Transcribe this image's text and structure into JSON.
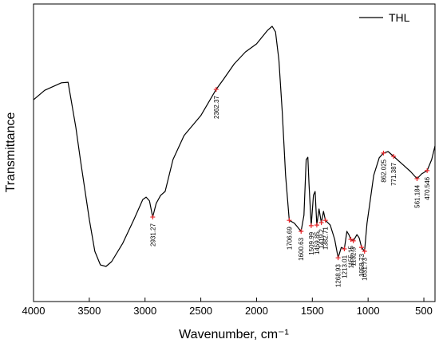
{
  "chart_data": {
    "type": "line",
    "xlabel": "Wavenumber, cm⁻¹",
    "ylabel": "Transmittance",
    "xlim": [
      4000,
      400
    ],
    "ylim": [
      0,
      100
    ],
    "xticks": [
      4000,
      3500,
      3000,
      2500,
      2000,
      1500,
      1000,
      500
    ],
    "legend": "upper right",
    "marker_color": "#e8262a",
    "series": [
      {
        "name": "THL",
        "color": "#000000",
        "x": [
          4000,
          3900,
          3750,
          3690,
          3620,
          3580,
          3500,
          3450,
          3400,
          3350,
          3300,
          3200,
          3100,
          3020,
          2990,
          2960,
          2931.27,
          2900,
          2860,
          2820,
          2750,
          2650,
          2500,
          2362.37,
          2300,
          2200,
          2100,
          2000,
          1900,
          1860,
          1830,
          1800,
          1770,
          1740,
          1706.69,
          1660,
          1600.63,
          1575,
          1555,
          1540,
          1530,
          1509.99,
          1490,
          1475,
          1459.85,
          1440,
          1419.2,
          1400,
          1382.71,
          1340,
          1300,
          1268.93,
          1240,
          1213.01,
          1190,
          1170,
          1155.15,
          1132.3,
          1100,
          1080,
          1058.73,
          1031.73,
          1010,
          980,
          950,
          900,
          862.025,
          820,
          771.387,
          700,
          620,
          561.184,
          520,
          470.546,
          430,
          400
        ],
        "values": [
          67.8,
          71,
          73.5,
          73.7,
          58.4,
          47.7,
          27.6,
          16.9,
          12.3,
          11.8,
          13.4,
          19.6,
          27.6,
          34.3,
          35.1,
          33.8,
          28.4,
          33,
          35.7,
          37,
          47.7,
          55.8,
          62.5,
          71.3,
          74.5,
          79.9,
          83.9,
          86.6,
          91.2,
          92.5,
          90.6,
          81.2,
          63.8,
          42.4,
          27.3,
          26.3,
          23.6,
          29,
          47.7,
          48.5,
          39.7,
          25.5,
          35.7,
          37,
          25.7,
          31.1,
          26.5,
          30.3,
          27.3,
          25.7,
          20.9,
          14.7,
          18.2,
          17.7,
          23.6,
          22.3,
          20.9,
          20.4,
          22.5,
          21.4,
          18.2,
          16.9,
          26.3,
          34.3,
          42.4,
          48.3,
          49.9,
          50.4,
          48.8,
          46.4,
          43.7,
          41.3,
          42.9,
          44,
          47.7,
          52.3
        ]
      }
    ],
    "annotations": [
      {
        "label": "2931.27",
        "x": 2931.27,
        "y": 28.4
      },
      {
        "label": "2362.37",
        "x": 2362.37,
        "y": 71.3
      },
      {
        "label": "1706.69",
        "x": 1706.69,
        "y": 27.3
      },
      {
        "label": "1600.63",
        "x": 1600.63,
        "y": 23.6
      },
      {
        "label": "1509.99",
        "x": 1509.99,
        "y": 25.5
      },
      {
        "label": "1459.85",
        "x": 1459.85,
        "y": 25.7
      },
      {
        "label": "1419.2",
        "x": 1419.2,
        "y": 26.5
      },
      {
        "label": "1382.71",
        "x": 1382.71,
        "y": 27.3
      },
      {
        "label": "1268.93",
        "x": 1268.93,
        "y": 14.7
      },
      {
        "label": "1213.01",
        "x": 1213.01,
        "y": 17.7
      },
      {
        "label": "1155.15",
        "x": 1155.15,
        "y": 20.9
      },
      {
        "label": "1132.3",
        "x": 1132.3,
        "y": 20.4
      },
      {
        "label": "1058.73",
        "x": 1058.73,
        "y": 18.2
      },
      {
        "label": "1031.73",
        "x": 1031.73,
        "y": 16.9
      },
      {
        "label": "862.025",
        "x": 862.025,
        "y": 49.9
      },
      {
        "label": "771.387",
        "x": 771.387,
        "y": 48.8
      },
      {
        "label": "561.184",
        "x": 561.184,
        "y": 41.3
      },
      {
        "label": "470.546",
        "x": 470.546,
        "y": 44
      }
    ]
  }
}
